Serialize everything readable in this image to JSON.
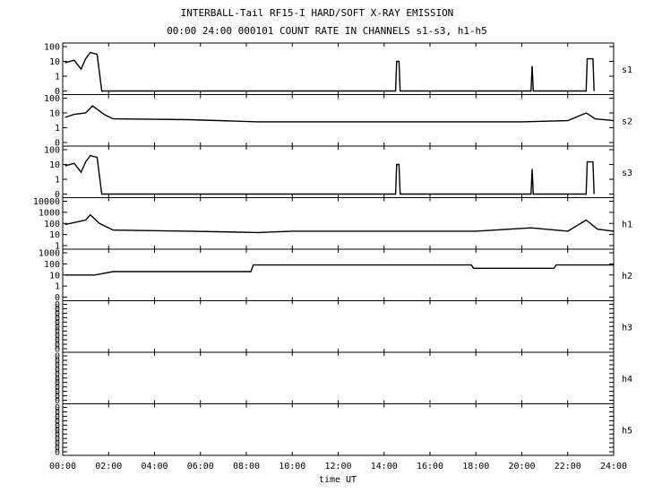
{
  "title_line1": "INTERBALL-Tail RF15-I HARD/SOFT X-RAY EMISSION",
  "title_line2": "00:00 24:00 000101  COUNT RATE IN CHANNELS s1-s3, h1-h5",
  "chart_data": {
    "type": "line",
    "xlabel": "time UT",
    "xlim": [
      0,
      24
    ],
    "x_tick_labels": [
      "00:00",
      "02:00",
      "04:00",
      "06:00",
      "08:00",
      "10:00",
      "12:00",
      "14:00",
      "16:00",
      "18:00",
      "20:00",
      "22:00",
      "24:00"
    ],
    "y_scale": "log",
    "panels": [
      {
        "name": "s1",
        "y_tick_labels": [
          "100",
          "10",
          "1",
          "0"
        ],
        "description_points": [
          [
            0.1,
            8
          ],
          [
            0.5,
            12
          ],
          [
            0.8,
            3
          ],
          [
            1.0,
            15
          ],
          [
            1.2,
            40
          ],
          [
            1.5,
            30
          ],
          [
            1.7,
            0
          ],
          [
            14.5,
            0
          ],
          [
            14.55,
            10
          ],
          [
            14.65,
            10
          ],
          [
            14.7,
            0
          ],
          [
            20.4,
            0
          ],
          [
            20.45,
            5
          ],
          [
            20.5,
            0
          ],
          [
            22.8,
            0
          ],
          [
            22.85,
            15
          ],
          [
            23.1,
            15
          ],
          [
            23.15,
            0
          ]
        ]
      },
      {
        "name": "s2",
        "y_tick_labels": [
          "100",
          "10",
          "1",
          "0"
        ],
        "description_points": [
          [
            0.1,
            5
          ],
          [
            0.5,
            8
          ],
          [
            1.0,
            10
          ],
          [
            1.3,
            30
          ],
          [
            1.8,
            8
          ],
          [
            2.2,
            4
          ],
          [
            5.5,
            3.5
          ],
          [
            8.5,
            2.5
          ],
          [
            14.5,
            2.5
          ],
          [
            16,
            2.5
          ],
          [
            20,
            2.5
          ],
          [
            22,
            3
          ],
          [
            22.8,
            10
          ],
          [
            23.2,
            4
          ],
          [
            24,
            3
          ]
        ]
      },
      {
        "name": "s3",
        "y_tick_labels": [
          "100",
          "10",
          "1",
          "0"
        ],
        "description_points": [
          [
            0.1,
            8
          ],
          [
            0.5,
            12
          ],
          [
            0.8,
            3
          ],
          [
            1.0,
            15
          ],
          [
            1.2,
            40
          ],
          [
            1.5,
            30
          ],
          [
            1.7,
            0
          ],
          [
            14.5,
            0
          ],
          [
            14.55,
            10
          ],
          [
            14.65,
            10
          ],
          [
            14.7,
            0
          ],
          [
            20.4,
            0
          ],
          [
            20.45,
            5
          ],
          [
            20.5,
            0
          ],
          [
            22.8,
            0
          ],
          [
            22.85,
            15
          ],
          [
            23.1,
            15
          ],
          [
            23.15,
            0
          ]
        ]
      },
      {
        "name": "h1",
        "y_tick_labels": [
          "10000",
          "1000",
          "100",
          "10",
          "1"
        ],
        "description_points": [
          [
            0.1,
            80
          ],
          [
            0.5,
            120
          ],
          [
            1.0,
            200
          ],
          [
            1.2,
            600
          ],
          [
            1.6,
            100
          ],
          [
            2.2,
            25
          ],
          [
            5.5,
            20
          ],
          [
            8.5,
            15
          ],
          [
            10,
            20
          ],
          [
            14.5,
            20
          ],
          [
            18,
            20
          ],
          [
            20.4,
            40
          ],
          [
            22,
            20
          ],
          [
            22.8,
            200
          ],
          [
            23.3,
            30
          ],
          [
            24,
            20
          ]
        ]
      },
      {
        "name": "h2",
        "y_tick_labels": [
          "1000",
          "100",
          "10",
          "1",
          "0"
        ],
        "description_points": [
          [
            0.1,
            10
          ],
          [
            1.4,
            10
          ],
          [
            2.2,
            20
          ],
          [
            8.2,
            20
          ],
          [
            8.3,
            80
          ],
          [
            14.5,
            80
          ],
          [
            17.8,
            80
          ],
          [
            17.9,
            40
          ],
          [
            20.4,
            40
          ],
          [
            21.4,
            40
          ],
          [
            21.5,
            80
          ],
          [
            24,
            80
          ]
        ]
      },
      {
        "name": "h3",
        "y_tick_labels": [
          "0",
          "0",
          "0",
          "0",
          "0",
          "0",
          "0",
          "0",
          "0",
          "0",
          "0"
        ],
        "description_points": []
      },
      {
        "name": "h4",
        "y_tick_labels": [
          "0",
          "0",
          "0",
          "0",
          "0",
          "0",
          "0",
          "0",
          "0",
          "0",
          "0"
        ],
        "description_points": []
      },
      {
        "name": "h5",
        "y_tick_labels": [
          "0",
          "0",
          "0",
          "0",
          "0",
          "0",
          "0",
          "0",
          "0",
          "0",
          "0"
        ],
        "description_points": []
      }
    ]
  }
}
